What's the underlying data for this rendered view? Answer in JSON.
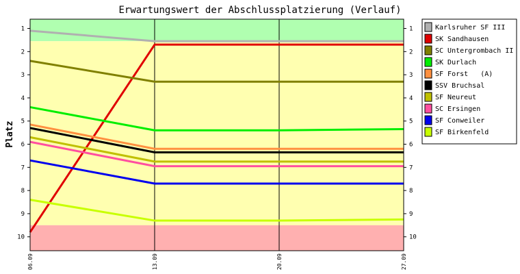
{
  "chart_data": {
    "type": "line",
    "title": "Erwartungswert der Abschlussplatzierung (Verlauf)",
    "ylabel": "Platz",
    "ylim": [
      0.6,
      10.6
    ],
    "y_inverted": true,
    "yticks": [
      1,
      2,
      3,
      4,
      5,
      6,
      7,
      8,
      9,
      10
    ],
    "categories": [
      "06.09",
      "13.09",
      "20.09",
      "27.09"
    ],
    "zones": [
      {
        "from": 0.6,
        "to": 1.55,
        "color": "#b0ffb0"
      },
      {
        "from": 1.55,
        "to": 9.5,
        "color": "#ffffb0"
      },
      {
        "from": 9.5,
        "to": 10.6,
        "color": "#ffb0b0"
      }
    ],
    "legend_position": "right",
    "series": [
      {
        "name": "Karlsruher SF III",
        "color": "#b0b0b0",
        "values": [
          1.1,
          1.55,
          1.55,
          1.55
        ]
      },
      {
        "name": "SK Sandhausen",
        "color": "#e00000",
        "values": [
          9.8,
          1.7,
          1.7,
          1.7
        ]
      },
      {
        "name": "SC Untergrombach II",
        "color": "#808000",
        "values": [
          2.4,
          3.3,
          3.3,
          3.3
        ]
      },
      {
        "name": "SK Durlach",
        "color": "#00ee00",
        "values": [
          4.4,
          5.4,
          5.4,
          5.35
        ]
      },
      {
        "name": "SF Forst   (A)",
        "color": "#ff9040",
        "values": [
          5.15,
          6.2,
          6.2,
          6.2
        ]
      },
      {
        "name": "SSV Bruchsal",
        "color": "#000000",
        "values": [
          5.3,
          6.35,
          6.35,
          6.35
        ]
      },
      {
        "name": "SF Neureut",
        "color": "#c0c000",
        "values": [
          5.7,
          6.75,
          6.75,
          6.75
        ]
      },
      {
        "name": "SC Ersingen",
        "color": "#ff4fa0",
        "values": [
          5.9,
          6.95,
          6.95,
          6.95
        ]
      },
      {
        "name": "SF Conweiler",
        "color": "#0000ee",
        "values": [
          6.7,
          7.7,
          7.7,
          7.7
        ]
      },
      {
        "name": "SF Birkenfeld",
        "color": "#c8ff00",
        "values": [
          8.4,
          9.3,
          9.3,
          9.25
        ]
      }
    ]
  }
}
